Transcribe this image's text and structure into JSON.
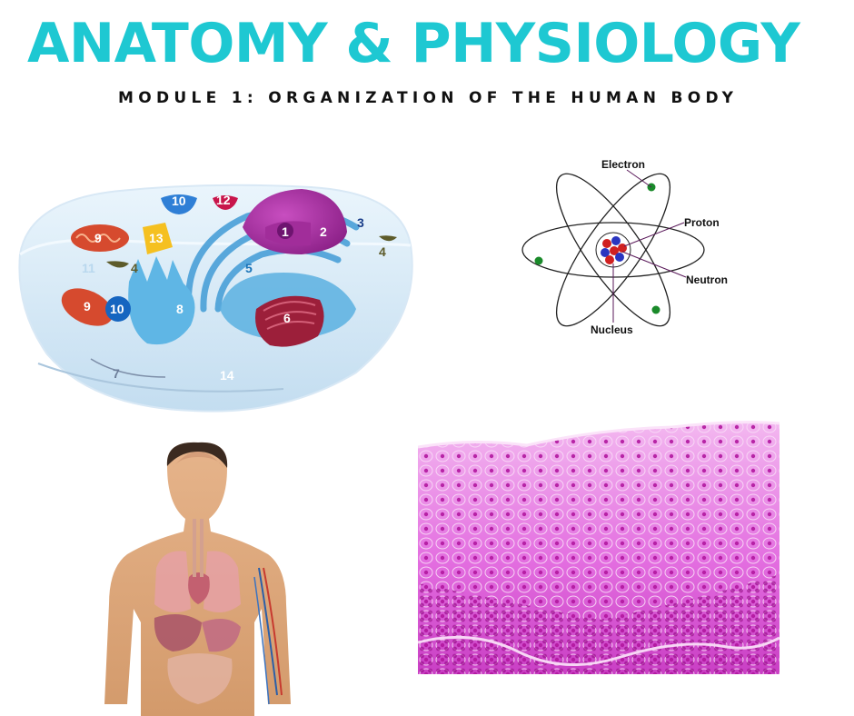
{
  "header": {
    "title": "ANATOMY & PHYSIOLOGY",
    "subtitle": "MODULE 1: ORGANIZATION OF THE HUMAN BODY"
  },
  "cell_diagram": {
    "labels": [
      "1",
      "2",
      "3",
      "4",
      "4",
      "5",
      "6",
      "7",
      "8",
      "9",
      "9",
      "10",
      "10",
      "11",
      "12",
      "13",
      "14"
    ]
  },
  "atom_diagram": {
    "electron": "Electron",
    "proton": "Proton",
    "neutron": "Neutron",
    "nucleus": "Nucleus"
  },
  "colors": {
    "title": "#1ec8d2",
    "tissue": "#e36ee0",
    "nucleus_stain": "#b1179e"
  }
}
